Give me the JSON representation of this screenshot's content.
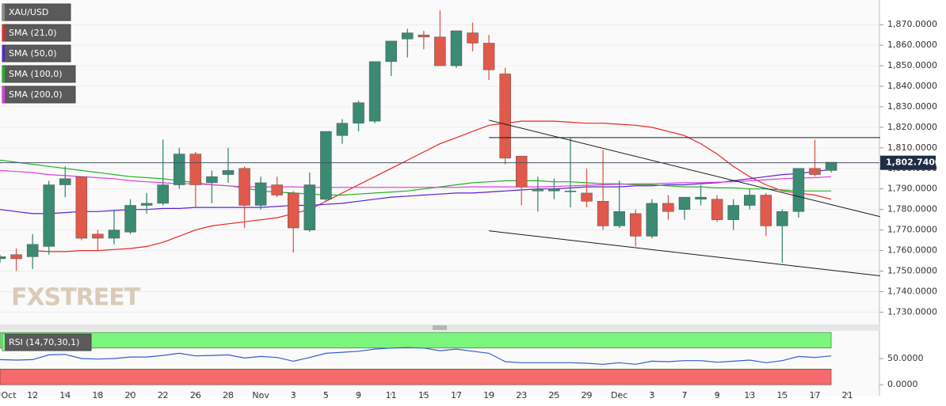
{
  "chart_data": [
    {
      "type": "candlestick",
      "name": "XAU/USD",
      "up_color": "#3b8a73",
      "down_color": "#e0594b",
      "categories": [
        "Oct",
        null,
        "12",
        null,
        "14",
        null,
        "18",
        null,
        "20",
        null,
        "22",
        null,
        "26",
        null,
        "28",
        null,
        "Nov",
        null,
        "3",
        null,
        "5",
        null,
        "9",
        null,
        "11",
        null,
        "15",
        null,
        "17",
        null,
        "19",
        null,
        "23",
        null,
        "25",
        null,
        "29",
        null,
        "Dec",
        null,
        "3",
        null,
        "7",
        null,
        "9",
        null,
        "13",
        null,
        "15",
        null,
        "17",
        null,
        "21"
      ],
      "open": [
        1756,
        1758,
        1757,
        1762,
        1792,
        1796,
        1768,
        1766,
        1769,
        1782,
        1783,
        1792,
        1807,
        1793,
        1797,
        1800,
        1782,
        1792,
        1788,
        1770,
        1785,
        1816,
        1822,
        1823,
        1852,
        1863,
        1865,
        1864,
        1850,
        1866,
        1861,
        1846,
        1806,
        1789,
        1789,
        1789,
        1788,
        1784,
        1772,
        1778,
        1767,
        1783,
        1780,
        1785,
        1785,
        1775,
        1782,
        1787,
        1772,
        1779,
        1800,
        1799,
        null
      ],
      "high": [
        1758,
        1761,
        1768,
        1794,
        1801,
        1796,
        1770,
        1780,
        1785,
        1788,
        1814,
        1810,
        1808,
        1799,
        1810,
        1801,
        1796,
        1796,
        1789,
        1798,
        1818,
        1824,
        1833,
        1852,
        1862,
        1868,
        1867,
        1877,
        1867,
        1871,
        1865,
        1849,
        1806,
        1796,
        1795,
        1815,
        1800,
        1809,
        1794,
        1780,
        1785,
        1787,
        1786,
        1792,
        1787,
        1785,
        1790,
        1788,
        1780,
        1800,
        1814,
        1803,
        null
      ],
      "low": [
        1754,
        1750,
        1751,
        1758,
        1786,
        1765,
        1760,
        1763,
        1768,
        1778,
        1782,
        1790,
        1781,
        1783,
        1793,
        1771,
        1780,
        1786,
        1759,
        1769,
        1784,
        1812,
        1818,
        1822,
        1845,
        1854,
        1858,
        1850,
        1849,
        1857,
        1843,
        1802,
        1782,
        1779,
        1785,
        1781,
        1781,
        1770,
        1771,
        1762,
        1766,
        1775,
        1775,
        1782,
        1774,
        1770,
        1780,
        1767,
        1754,
        1776,
        1796,
        1798,
        null
      ],
      "close": [
        1757,
        1756,
        1763,
        1792,
        1795,
        1766,
        1766,
        1770,
        1782,
        1783,
        1792,
        1807,
        1792,
        1796,
        1799,
        1782,
        1793,
        1787,
        1771,
        1792,
        1818,
        1822,
        1832,
        1852,
        1862,
        1866,
        1864,
        1850,
        1867,
        1861,
        1848,
        1805,
        1791,
        1790,
        1790,
        1789,
        1784,
        1772,
        1779,
        1767,
        1783,
        1779,
        1786,
        1786,
        1775,
        1782,
        1787,
        1772,
        1779,
        1800,
        1797,
        1803,
        null
      ],
      "series": [
        {
          "name": "SMA (21,0)",
          "color": "#e8271f",
          "values": [
            null,
            null,
            1760,
            1759.5,
            1759.5,
            1760,
            1760,
            1760.5,
            1761,
            1762,
            1764,
            1767,
            1770,
            1772,
            1773,
            1774,
            1775,
            1776,
            1778,
            1780,
            1784,
            1788,
            1792,
            1796,
            1800,
            1804,
            1808,
            1812,
            1815,
            1818,
            1821,
            1822,
            1823,
            1823,
            1823,
            1822.5,
            1822,
            1822,
            1821.5,
            1821,
            1820,
            1818,
            1816,
            1812,
            1807,
            1801,
            1796,
            1792,
            1789,
            1788,
            1787,
            1785,
            null
          ]
        },
        {
          "name": "SMA (50,0)",
          "color": "#5b1fd4",
          "values": [
            1780,
            1779,
            1778,
            1778,
            1778.5,
            1779,
            1779,
            1779.5,
            1780,
            1780,
            1780.5,
            1780.5,
            1781,
            1781,
            1781,
            1781,
            1781,
            1781.5,
            1782,
            1782,
            1782.5,
            1783,
            1784,
            1785,
            1786,
            1786.5,
            1787,
            1787.5,
            1788,
            1788,
            1788.5,
            1789,
            1789.5,
            1790,
            1790,
            1790.5,
            1791,
            1791,
            1791,
            1791.5,
            1791.5,
            1792,
            1792,
            1792.5,
            1793,
            1794,
            1795,
            1796,
            1797,
            1797.5,
            1798.5,
            1799.5,
            null
          ]
        },
        {
          "name": "SMA (100,0)",
          "color": "#22b322",
          "values": [
            1804,
            1803,
            1802,
            1801,
            1800,
            1799,
            1798,
            1797,
            1796,
            1795.5,
            1795,
            1794,
            1793,
            1792,
            1791.5,
            1790.5,
            1789,
            1788.5,
            1788,
            1787.5,
            1787,
            1787,
            1787.5,
            1788,
            1788.5,
            1789,
            1790,
            1791,
            1792,
            1793,
            1793.5,
            1794,
            1794,
            1794,
            1793.5,
            1793.5,
            1793,
            1792.5,
            1792.5,
            1792,
            1792,
            1791.5,
            1791,
            1791,
            1790.5,
            1790.5,
            1790,
            1790,
            1789.5,
            1789,
            1789,
            1789,
            null
          ]
        },
        {
          "name": "SMA (200,0)",
          "color": "#e23be0",
          "values": [
            1799,
            1798.5,
            1798,
            1797,
            1796.5,
            1796,
            1795.5,
            1795,
            1794,
            1793.5,
            1793,
            1792.5,
            1792.5,
            1792,
            1791.5,
            1791,
            1791,
            1791,
            1791,
            1790.8,
            1790.8,
            1790.8,
            1790.8,
            1790.8,
            1790.8,
            1790.8,
            1790.8,
            1790.8,
            1790.8,
            1791,
            1791,
            1791,
            1791,
            1791,
            1791.2,
            1791.5,
            1791.8,
            1792,
            1792.3,
            1792.5,
            1792.5,
            1792.8,
            1793,
            1793,
            1793.3,
            1793.5,
            1794,
            1794.5,
            1795,
            1795.3,
            1795.5,
            1796,
            null
          ]
        }
      ],
      "lines": [
        {
          "x": [
            30,
            54
          ],
          "values": [
            1823.5,
            1776.5
          ],
          "color": "#1a1a1a"
        },
        {
          "x": [
            30,
            54
          ],
          "values": [
            1769.6,
            1747.7
          ],
          "color": "#1a1a1a"
        },
        {
          "x": [
            30,
            54
          ],
          "values": [
            1815,
            1815
          ],
          "color": "#1a1a1a"
        }
      ],
      "last_price": {
        "value": 1802.74,
        "label": "1,802.7400"
      },
      "watermark": "FXSTREET",
      "ylim": [
        1724,
        1882
      ],
      "yticks": [
        {
          "value": 1730,
          "label": "1,730.0000"
        },
        {
          "value": 1740,
          "label": "1,740.0000"
        },
        {
          "value": 1750,
          "label": "1,750.0000"
        },
        {
          "value": 1760,
          "label": "1,760.0000"
        },
        {
          "value": 1770,
          "label": "1,770.0000"
        },
        {
          "value": 1780,
          "label": "1,780.0000"
        },
        {
          "value": 1790,
          "label": "1,790.0000"
        },
        {
          "value": 1800,
          "label": "1,800.0000"
        },
        {
          "value": 1810,
          "label": "1,810.0000"
        },
        {
          "value": 1820,
          "label": "1,820.0000"
        },
        {
          "value": 1830,
          "label": "1,830.0000"
        },
        {
          "value": 1840,
          "label": "1,840.0000"
        },
        {
          "value": 1850,
          "label": "1,850.0000"
        },
        {
          "value": 1860,
          "label": "1,860.0000"
        },
        {
          "value": 1870,
          "label": "1,870.0000"
        }
      ],
      "grid": true
    },
    {
      "type": "line",
      "series": [
        {
          "name": "RSI (14,70,30,1)",
          "color": "#2f5fd0",
          "values": [
            48,
            47,
            48,
            57,
            58,
            50,
            49,
            50,
            53,
            53,
            56,
            60,
            55,
            56,
            57,
            51,
            54,
            52,
            45,
            52,
            60,
            62,
            64,
            68,
            70,
            71,
            70,
            65,
            68,
            64,
            60,
            44,
            42,
            42,
            42,
            42,
            41,
            39,
            42,
            39,
            45,
            44,
            46,
            46,
            43,
            45,
            47,
            42,
            46,
            54,
            52,
            55,
            null
          ]
        }
      ],
      "bands": [
        {
          "from": 70,
          "to": 100,
          "color": "#7cf57c"
        },
        {
          "from": 0,
          "to": 30,
          "color": "#f56a6a"
        }
      ],
      "ylim": [
        -21,
        103
      ],
      "yticks": [
        {
          "value": 50,
          "label": "50.0000"
        },
        {
          "value": 0,
          "label": "0.0000"
        }
      ]
    }
  ]
}
